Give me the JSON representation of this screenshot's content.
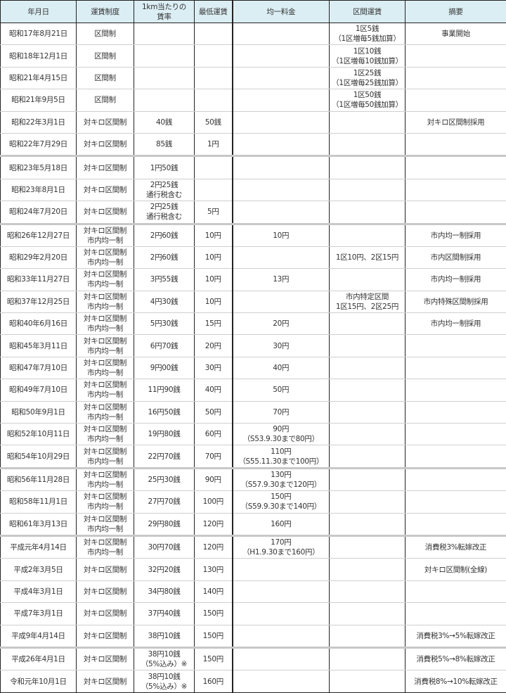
{
  "table": {
    "headers": [
      "年月日",
      "運賃制度",
      "1km当たりの\n賃率",
      "最低運賃",
      "均一料金",
      "区間運賃",
      "摘要"
    ],
    "rows": [
      {
        "date": "昭和17年8月21日",
        "system": "区間制",
        "rate": "",
        "min": "",
        "flat": "",
        "section": "1区5銭\n（1区増毎5銭加算）",
        "note": "事業開始"
      },
      {
        "date": "昭和18年12月1日",
        "system": "区間制",
        "rate": "",
        "min": "",
        "flat": "",
        "section": "1区10銭\n（1区増毎10銭加算）",
        "note": ""
      },
      {
        "date": "昭和21年4月15日",
        "system": "区間制",
        "rate": "",
        "min": "",
        "flat": "",
        "section": "1区25銭\n（1区増毎25銭加算）",
        "note": ""
      },
      {
        "date": "昭和21年9月5日",
        "system": "区間制",
        "rate": "",
        "min": "",
        "flat": "",
        "section": "1区50銭\n（1区増毎50銭加算）",
        "note": ""
      },
      {
        "date": "昭和22年3月1日",
        "system": "対キロ区間制",
        "rate": "40銭",
        "min": "50銭",
        "flat": "",
        "section": "",
        "note": "対キロ区間制採用"
      },
      {
        "date": "昭和22年7月29日",
        "system": "対キロ区間制",
        "rate": "85銭",
        "min": "1円",
        "flat": "",
        "section": "",
        "note": ""
      },
      {
        "date": "昭和23年5月18日",
        "system": "対キロ区間制",
        "rate": "1円50銭",
        "min": "",
        "flat": "",
        "section": "",
        "note": ""
      },
      {
        "date": "昭和23年8月1日",
        "system": "対キロ区間制",
        "rate": "2円25銭\n通行税含む",
        "min": "",
        "flat": "",
        "section": "",
        "note": ""
      },
      {
        "date": "昭和24年7月20日",
        "system": "対キロ区間制",
        "rate": "2円25銭\n通行税含む",
        "min": "5円",
        "flat": "",
        "section": "",
        "note": ""
      },
      {
        "date": "昭和26年12月27日",
        "system": "対キロ区間制\n市内均一制",
        "rate": "2円60銭",
        "min": "10円",
        "flat": "10円",
        "section": "",
        "note": "市内均一制採用"
      },
      {
        "date": "昭和29年2月20日",
        "system": "対キロ区間制\n市内均一制",
        "rate": "2円60銭",
        "min": "10円",
        "flat": "",
        "section": "1区10円、2区15円",
        "note": "市内区間制採用"
      },
      {
        "date": "昭和33年11月27日",
        "system": "対キロ区間制\n市内均一制",
        "rate": "3円55銭",
        "min": "10円",
        "flat": "13円",
        "section": "",
        "note": "市内均一制採用"
      },
      {
        "date": "昭和37年12月25日",
        "system": "対キロ区間制\n市内均一制",
        "rate": "4円30銭",
        "min": "10円",
        "flat": "",
        "section": "市内特定区間\n1区15円、2区25円",
        "note": "市内特殊区間制採用"
      },
      {
        "date": "昭和40年6月16日",
        "system": "対キロ区間制\n市内均一制",
        "rate": "5円30銭",
        "min": "15円",
        "flat": "20円",
        "section": "",
        "note": "市内均一制採用"
      },
      {
        "date": "昭和45年3月11日",
        "system": "対キロ区間制\n市内均一制",
        "rate": "6円70銭",
        "min": "20円",
        "flat": "30円",
        "section": "",
        "note": ""
      },
      {
        "date": "昭和47年7月10日",
        "system": "対キロ区間制\n市内均一制",
        "rate": "9円00銭",
        "min": "30円",
        "flat": "40円",
        "section": "",
        "note": ""
      },
      {
        "date": "昭和49年7月10日",
        "system": "対キロ区間制\n市内均一制",
        "rate": "11円90銭",
        "min": "40円",
        "flat": "50円",
        "section": "",
        "note": ""
      },
      {
        "date": "昭和50年9月1日",
        "system": "対キロ区間制\n市内均一制",
        "rate": "16円50銭",
        "min": "50円",
        "flat": "70円",
        "section": "",
        "note": ""
      },
      {
        "date": "昭和52年10月11日",
        "system": "対キロ区間制\n市内均一制",
        "rate": "19円80銭",
        "min": "60円",
        "flat": "90円\n（S53.9.30まで80円）",
        "section": "",
        "note": ""
      },
      {
        "date": "昭和54年10月29日",
        "system": "対キロ区間制\n市内均一制",
        "rate": "22円70銭",
        "min": "70円",
        "flat": "110円\n（S55.11.30まで100円）",
        "section": "",
        "note": ""
      },
      {
        "date": "昭和56年11月28日",
        "system": "対キロ区間制\n市内均一制",
        "rate": "25円30銭",
        "min": "90円",
        "flat": "130円\n（S57.9.30まで120円）",
        "section": "",
        "note": ""
      },
      {
        "date": "昭和58年11月1日",
        "system": "対キロ区間制\n市内均一制",
        "rate": "27円70銭",
        "min": "100円",
        "flat": "150円\n（S59.9.30まで140円）",
        "section": "",
        "note": ""
      },
      {
        "date": "昭和61年3月13日",
        "system": "対キロ区間制\n市内均一制",
        "rate": "29円80銭",
        "min": "120円",
        "flat": "160円",
        "section": "",
        "note": ""
      },
      {
        "date": "平成元年4月14日",
        "system": "対キロ区間制\n市内均一制",
        "rate": "30円70銭",
        "min": "120円",
        "flat": "170円\n（H1.9.30まで160円）",
        "section": "",
        "note": "消費税3%転嫁改正"
      },
      {
        "date": "平成2年3月5日",
        "system": "対キロ区間制",
        "rate": "32円20銭",
        "min": "130円",
        "flat": "",
        "section": "",
        "note": "対キロ区間制(全線)"
      },
      {
        "date": "平成4年3月1日",
        "system": "対キロ区間制",
        "rate": "34円80銭",
        "min": "140円",
        "flat": "",
        "section": "",
        "note": ""
      },
      {
        "date": "平成7年3月1日",
        "system": "対キロ区間制",
        "rate": "37円40銭",
        "min": "150円",
        "flat": "",
        "section": "",
        "note": ""
      },
      {
        "date": "平成9年4月14日",
        "system": "対キロ区間制",
        "rate": "38円10銭",
        "min": "150円",
        "flat": "",
        "section": "",
        "note": "消費税3%→5%転嫁改正"
      },
      {
        "date": "平成26年4月1日",
        "system": "対キロ区間制",
        "rate": "38円10銭\n（5%込み）※",
        "min": "150円",
        "flat": "",
        "section": "",
        "note": "消費税5%→8%転嫁改正"
      },
      {
        "date": "令和元年10月1日",
        "system": "対キロ区間制",
        "rate": "38円10銭\n（5%込み）※",
        "min": "160円",
        "flat": "",
        "section": "",
        "note": "消費税8%→10%転嫁改正"
      }
    ]
  }
}
